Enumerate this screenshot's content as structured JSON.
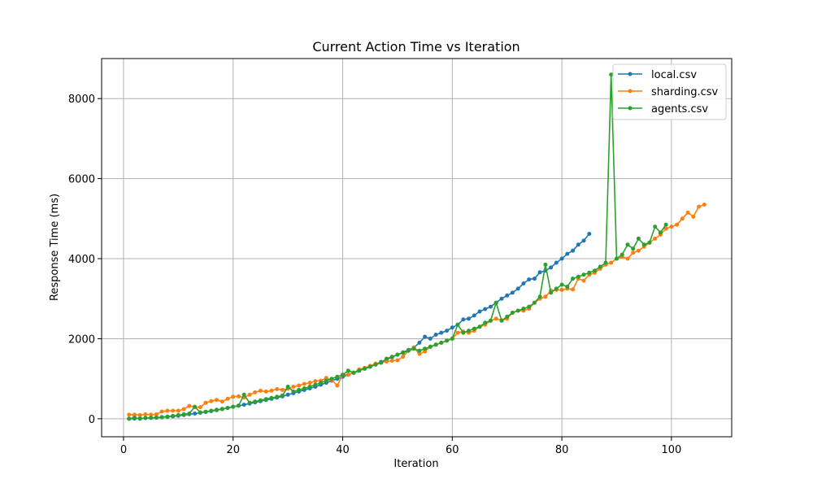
{
  "chart_data": {
    "type": "line",
    "title": "Current Action Time vs Iteration",
    "xlabel": "Iteration",
    "ylabel": "Response Time (ms)",
    "xlim": [
      -4,
      111
    ],
    "ylim": [
      -450,
      9000
    ],
    "xticks": [
      0,
      20,
      40,
      60,
      80,
      100
    ],
    "yticks": [
      0,
      2000,
      4000,
      6000,
      8000
    ],
    "grid": true,
    "legend_position": "top-right",
    "series": [
      {
        "name": "local.csv",
        "color": "#1f77b4",
        "x": [
          1,
          2,
          3,
          4,
          5,
          6,
          7,
          8,
          9,
          10,
          11,
          12,
          13,
          14,
          15,
          16,
          17,
          18,
          19,
          20,
          21,
          22,
          23,
          24,
          25,
          26,
          27,
          28,
          29,
          30,
          31,
          32,
          33,
          34,
          35,
          36,
          37,
          38,
          39,
          40,
          41,
          42,
          43,
          44,
          45,
          46,
          47,
          48,
          49,
          50,
          51,
          52,
          53,
          54,
          55,
          56,
          57,
          58,
          59,
          60,
          61,
          62,
          63,
          64,
          65,
          66,
          67,
          68,
          69,
          70,
          71,
          72,
          73,
          74,
          75,
          76,
          77,
          78,
          79,
          80,
          81,
          82,
          83,
          84,
          85
        ],
        "y": [
          0,
          5,
          10,
          15,
          20,
          25,
          35,
          45,
          60,
          75,
          95,
          115,
          130,
          150,
          170,
          190,
          215,
          240,
          270,
          300,
          325,
          350,
          380,
          410,
          440,
          470,
          500,
          530,
          560,
          600,
          640,
          680,
          720,
          760,
          800,
          850,
          900,
          950,
          1000,
          1050,
          1100,
          1150,
          1200,
          1250,
          1300,
          1360,
          1420,
          1480,
          1540,
          1600,
          1660,
          1720,
          1780,
          1900,
          2050,
          2000,
          2100,
          2150,
          2200,
          2280,
          2350,
          2480,
          2500,
          2580,
          2680,
          2740,
          2800,
          2900,
          3000,
          3080,
          3150,
          3250,
          3380,
          3480,
          3500,
          3660,
          3700,
          3780,
          3900,
          4000,
          4120,
          4200,
          4350,
          4450,
          4620
        ]
      },
      {
        "name": "sharding.csv",
        "color": "#ff7f0e",
        "x": [
          1,
          2,
          3,
          4,
          5,
          6,
          7,
          8,
          9,
          10,
          11,
          12,
          13,
          14,
          15,
          16,
          17,
          18,
          19,
          20,
          21,
          22,
          23,
          24,
          25,
          26,
          27,
          28,
          29,
          30,
          31,
          32,
          33,
          34,
          35,
          36,
          37,
          38,
          39,
          40,
          41,
          42,
          43,
          44,
          45,
          46,
          47,
          48,
          49,
          50,
          51,
          52,
          53,
          54,
          55,
          56,
          57,
          58,
          59,
          60,
          61,
          62,
          63,
          64,
          65,
          66,
          67,
          68,
          69,
          70,
          71,
          72,
          73,
          74,
          75,
          76,
          77,
          78,
          79,
          80,
          81,
          82,
          83,
          84,
          85,
          86,
          87,
          88,
          89,
          90,
          91,
          92,
          93,
          94,
          95,
          96,
          97,
          98,
          99,
          100,
          101,
          102,
          103,
          104,
          105,
          106
        ],
        "y": [
          100,
          100,
          90,
          110,
          100,
          110,
          180,
          200,
          200,
          200,
          240,
          320,
          290,
          290,
          400,
          440,
          470,
          430,
          500,
          550,
          560,
          530,
          600,
          660,
          700,
          680,
          700,
          740,
          720,
          750,
          800,
          830,
          870,
          900,
          940,
          950,
          1020,
          970,
          830,
          1100,
          1100,
          1150,
          1230,
          1270,
          1320,
          1380,
          1400,
          1430,
          1450,
          1460,
          1550,
          1700,
          1780,
          1620,
          1680,
          1800,
          1850,
          1900,
          1950,
          2000,
          2150,
          2180,
          2150,
          2200,
          2300,
          2350,
          2450,
          2500,
          2460,
          2500,
          2650,
          2700,
          2700,
          2750,
          2900,
          3000,
          3050,
          3200,
          3220,
          3220,
          3250,
          3230,
          3500,
          3450,
          3600,
          3650,
          3750,
          3850,
          3900,
          4000,
          4050,
          4000,
          4150,
          4200,
          4300,
          4400,
          4500,
          4600,
          4750,
          4800,
          4850,
          5000,
          5150,
          5050,
          5300,
          5350
        ]
      },
      {
        "name": "agents.csv",
        "color": "#2ca02c",
        "x": [
          1,
          2,
          3,
          4,
          5,
          6,
          7,
          8,
          9,
          10,
          11,
          12,
          13,
          14,
          15,
          16,
          17,
          18,
          19,
          20,
          21,
          22,
          23,
          24,
          25,
          26,
          27,
          28,
          29,
          30,
          31,
          32,
          33,
          34,
          35,
          36,
          37,
          38,
          39,
          40,
          41,
          42,
          43,
          44,
          45,
          46,
          47,
          48,
          49,
          50,
          51,
          52,
          53,
          54,
          55,
          56,
          57,
          58,
          59,
          60,
          61,
          62,
          63,
          64,
          65,
          66,
          67,
          68,
          69,
          70,
          71,
          72,
          73,
          74,
          75,
          76,
          77,
          78,
          79,
          80,
          81,
          82,
          83,
          84,
          85,
          86,
          87,
          88,
          89,
          90,
          91,
          92,
          93,
          94,
          95,
          96,
          97,
          98,
          99
        ],
        "y": [
          0,
          30,
          0,
          20,
          25,
          30,
          40,
          55,
          70,
          90,
          110,
          130,
          300,
          160,
          175,
          200,
          225,
          245,
          270,
          300,
          330,
          600,
          400,
          430,
          460,
          490,
          520,
          550,
          580,
          800,
          680,
          720,
          760,
          800,
          850,
          900,
          950,
          1000,
          1050,
          1100,
          1200,
          1150,
          1200,
          1250,
          1300,
          1350,
          1400,
          1500,
          1550,
          1600,
          1650,
          1700,
          1750,
          1700,
          1750,
          1800,
          1850,
          1900,
          1950,
          2000,
          2350,
          2150,
          2200,
          2250,
          2300,
          2400,
          2450,
          2900,
          2450,
          2550,
          2650,
          2700,
          2750,
          2800,
          2900,
          3050,
          3850,
          3150,
          3250,
          3350,
          3300,
          3500,
          3550,
          3600,
          3650,
          3700,
          3800,
          3900,
          8600,
          4000,
          4100,
          4350,
          4250,
          4500,
          4350,
          4400,
          4800,
          4650,
          4850
        ]
      }
    ]
  }
}
